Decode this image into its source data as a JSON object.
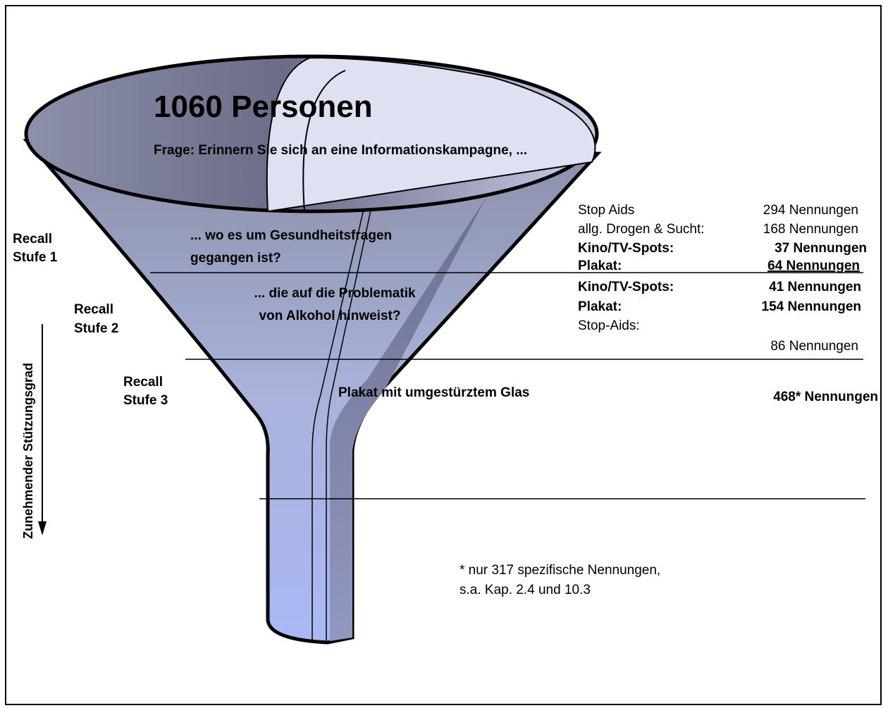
{
  "funnel": {
    "heading": "1060 Personen",
    "question": "Frage: Erinnern Sie sich an eine Informationskampagne, ...",
    "axis_label": "Zunehmender Stützungsgrad",
    "stages": [
      {
        "label": [
          "Recall",
          "Stufe 1"
        ],
        "question": [
          "... wo es um Gesundheitsfragen",
          "gegangen ist?"
        ],
        "results": [
          [
            "Stop Aids",
            "294 Nennungen"
          ],
          [
            "allg. Drogen & Sucht:",
            "168 Nennungen"
          ],
          [
            "Kino/TV-Spots:",
            "37 Nennungen"
          ],
          [
            "Plakat:",
            "64 Nennungen"
          ]
        ]
      },
      {
        "label": [
          "Recall",
          "Stufe 2"
        ],
        "question": [
          "... die auf die Problematik",
          "von Alkohol hinweist?"
        ],
        "results": [
          [
            "Kino/TV-Spots:",
            "41 Nennungen"
          ],
          [
            "Plakat:",
            "154 Nennungen"
          ],
          [
            "Stop-Aids:",
            "86 Nennungen"
          ]
        ]
      },
      {
        "label": [
          "Recall",
          "Stufe 3"
        ],
        "question": [
          "Plakat mit umgestürztem Glas"
        ],
        "results": [
          [
            "468* Nennungen"
          ]
        ]
      }
    ],
    "footnote": [
      "* nur 317 spezifische Nennungen,",
      "s.a. Kap. 2.4 und 10.3"
    ]
  }
}
